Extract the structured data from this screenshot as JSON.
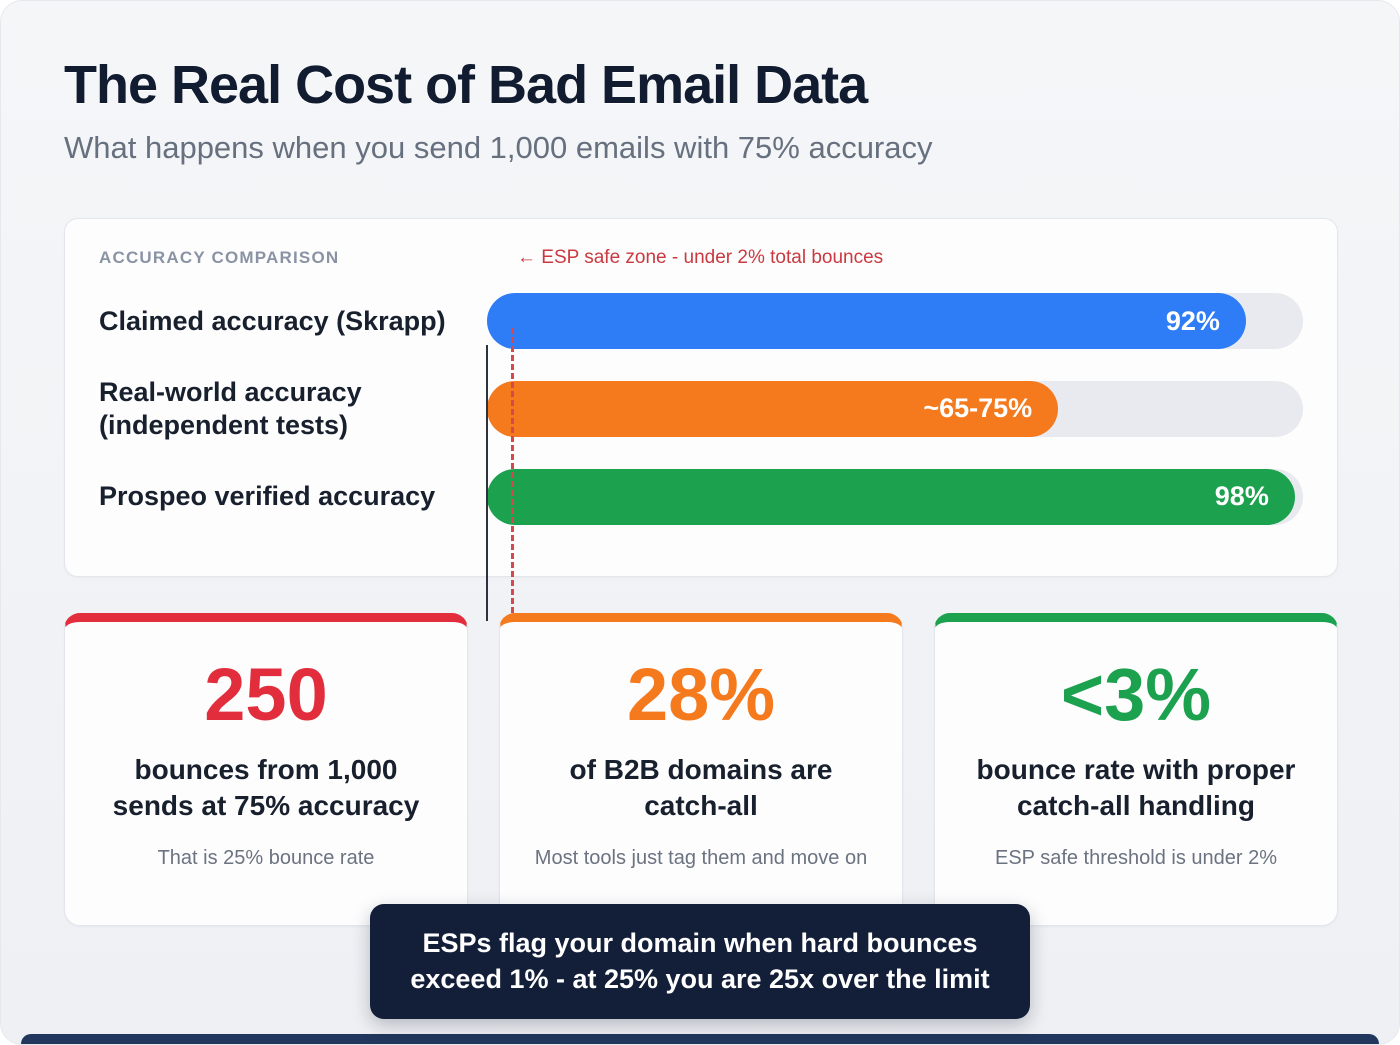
{
  "page": {
    "title": "The Real Cost of Bad Email Data",
    "subtitle": "What happens when you send 1,000 emails with 75% accuracy"
  },
  "theme": {
    "blue": "#2e7cf6",
    "orange": "#f5791d",
    "green": "#1ca24f",
    "red": "#e22d3d",
    "navy": "#131e38",
    "footer_strip": "#21375d"
  },
  "chart": {
    "section_label": "ACCURACY COMPARISON",
    "annotation": "← ESP safe zone - under 2% total bounces",
    "bars": [
      {
        "label": "Claimed accuracy (Skrapp)",
        "value_label": "92%",
        "width_pct": 93,
        "color": "#2e7cf6"
      },
      {
        "label": "Real-world accuracy (independent tests)",
        "value_label": "~65-75%",
        "width_pct": 70,
        "color": "#f5791d"
      },
      {
        "label": "Prospeo verified accuracy",
        "value_label": "98%",
        "width_pct": 99,
        "color": "#1ca24f"
      }
    ]
  },
  "chart_data": {
    "type": "bar",
    "orientation": "horizontal",
    "title": "ACCURACY COMPARISON",
    "categories": [
      "Claimed accuracy (Skrapp)",
      "Real-world accuracy (independent tests)",
      "Prospeo verified accuracy"
    ],
    "values": [
      92,
      70,
      98
    ],
    "value_labels": [
      "92%",
      "~65-75%",
      "98%"
    ],
    "xlim": [
      0,
      100
    ],
    "annotation": "ESP safe zone - under 2% total bounces",
    "legend": "none",
    "grid": "off"
  },
  "stats": [
    {
      "value": "250",
      "heading": "bounces from 1,000 sends at 75% accuracy",
      "caption": "That is 25% bounce rate",
      "color": "#e22d3d"
    },
    {
      "value": "28%",
      "heading": "of B2B domains are catch-all",
      "caption": "Most tools just tag them and move on",
      "color": "#f5791d"
    },
    {
      "value": "<3%",
      "heading": "bounce rate with proper catch-all handling",
      "caption": "ESP safe threshold is under 2%",
      "color": "#1ca24f"
    }
  ],
  "banner": {
    "text": "ESPs flag your domain when hard bounces exceed 1% - at 25% you are 25x over the limit"
  }
}
